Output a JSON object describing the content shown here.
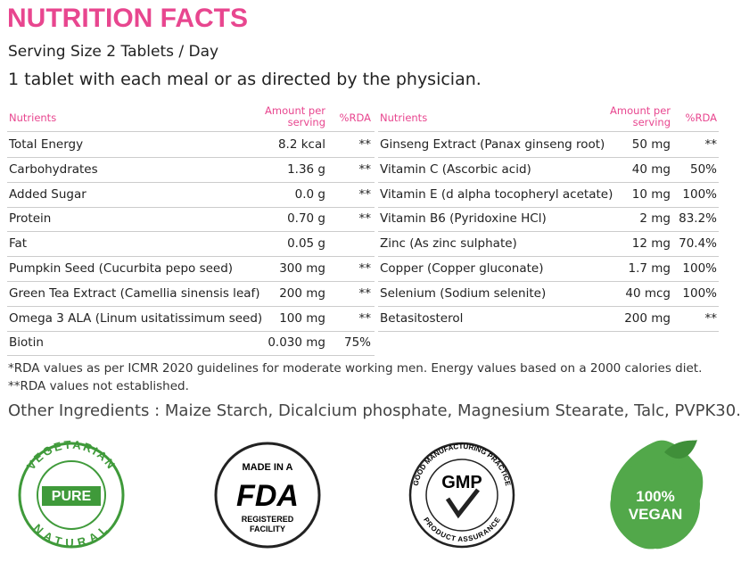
{
  "title": "NUTRITION FACTS",
  "serving": "Serving Size 2 Tablets / Day",
  "directions": "1 tablet with each meal or as directed by the physician.",
  "tables": [
    {
      "headers": [
        "Nutrients",
        "Amount per serving",
        "%RDA"
      ],
      "rows": [
        [
          "Total Energy",
          "8.2 kcal",
          "**"
        ],
        [
          "Carbohydrates",
          "1.36 g",
          "**"
        ],
        [
          "Added Sugar",
          "0.0 g",
          "**"
        ],
        [
          "Protein",
          "0.70 g",
          "**"
        ],
        [
          "Fat",
          "0.05 g"
        ],
        [
          "Pumpkin Seed (Cucurbita pepo seed)",
          "300 mg",
          "**"
        ],
        [
          "Green Tea Extract (Camellia sinensis leaf)",
          "200 mg",
          "**"
        ],
        [
          "Omega 3 ALA (Linum usitatissimum seed)",
          "100 mg",
          "**"
        ],
        [
          "Biotin",
          "0.030 mg",
          "75%"
        ]
      ]
    },
    {
      "headers": [
        "Nutrients",
        "Amount per serving",
        "%RDA"
      ],
      "rows": [
        [
          "Ginseng Extract (Panax ginseng root)",
          "50 mg",
          "**"
        ],
        [
          "Vitamin C (Ascorbic acid)",
          "40 mg",
          "50%"
        ],
        [
          "Vitamin E (d alpha tocopheryl acetate)",
          "10 mg",
          "100%"
        ],
        [
          "Vitamin B6 (Pyridoxine HCl)",
          "2 mg",
          "83.2%"
        ],
        [
          "Zinc (As zinc sulphate)",
          "12 mg",
          "70.4%"
        ],
        [
          "Copper (Copper gluconate)",
          "1.7 mg",
          "100%"
        ],
        [
          "Selenium (Sodium selenite)",
          "40 mcg",
          "100%"
        ],
        [
          "Betasitosterol",
          "200 mg",
          "**"
        ]
      ]
    }
  ],
  "footnotes": [
    "*RDA values as per ICMR 2020 guidelines for moderate working men. Energy values based on a 2000 calories diet.",
    "**RDA values not established."
  ],
  "other_ingredients": "Other Ingredients : Maize Starch, Dicalcium phosphate, Magnesium Stearate, Talc, PVPK30.",
  "badges": {
    "vegetarian": {
      "top": "VEGETARIAN",
      "center": "PURE",
      "bottom": "NATURAL"
    },
    "fda": {
      "top": "MADE IN A",
      "center": "FDA",
      "bottom1": "REGISTERED",
      "bottom2": "FACILITY"
    },
    "gmp": {
      "top": "GOOD MANUFACTURING PRACTICE",
      "center": "GMP",
      "bottom": "PRODUCT ASSURANCE"
    },
    "vegan": {
      "line1": "100%",
      "line2": "VEGAN"
    }
  }
}
